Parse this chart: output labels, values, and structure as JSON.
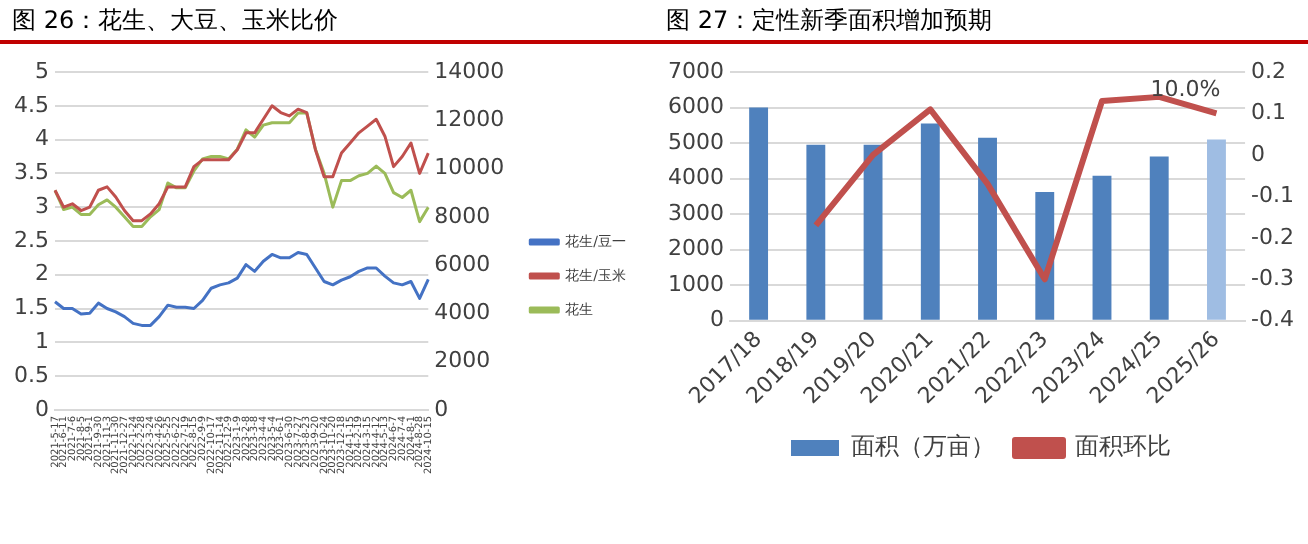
{
  "chart_data": [
    {
      "type": "line",
      "title": "图 26：花生、大豆、玉米比价",
      "categories": [
        "2021-5-17",
        "2021-6-11",
        "2021-7-6",
        "2021-8-5",
        "2021-9-1",
        "2021-9-30",
        "2021-11-3",
        "2021-11-30",
        "2021-12-27",
        "2022-1-24",
        "2022-2-28",
        "2022-3-24",
        "2022-4-26",
        "2022-5-25",
        "2022-6-22",
        "2022-7-19",
        "2022-8-15",
        "2022-9-9",
        "2022-10-17",
        "2022-11-14",
        "2022-12-9",
        "2023-1-9",
        "2023-2-8",
        "2023-3-8",
        "2023-4-4",
        "2023-5-4",
        "2023-6-1",
        "2023-6-30",
        "2023-7-27",
        "2023-8-23",
        "2023-9-20",
        "2023-10-24",
        "2023-11-20",
        "2023-12-18",
        "2024-1-15",
        "2024-2-19",
        "2024-3-15",
        "2024-4-12",
        "2024-5-13",
        "2024-6-7",
        "2024-7-4",
        "2024-8-1",
        "2024-8-28",
        "2024-10-15"
      ],
      "series": [
        {
          "name": "花生/豆一",
          "color": "#4472c4",
          "values": [
            1.6,
            1.5,
            1.5,
            1.42,
            1.43,
            1.58,
            1.5,
            1.45,
            1.38,
            1.28,
            1.25,
            1.25,
            1.38,
            1.55,
            1.52,
            1.52,
            1.5,
            1.62,
            1.8,
            1.85,
            1.88,
            1.95,
            2.15,
            2.05,
            2.2,
            2.3,
            2.25,
            2.25,
            2.33,
            2.3,
            2.1,
            1.9,
            1.85,
            1.92,
            1.97,
            2.05,
            2.1,
            2.1,
            1.98,
            1.88,
            1.85,
            1.9,
            1.65,
            1.93
          ]
        },
        {
          "name": "花生/玉米",
          "color": "#c0504d",
          "values": [
            3.25,
            3.0,
            3.05,
            2.95,
            3.0,
            3.25,
            3.3,
            3.15,
            2.95,
            2.8,
            2.8,
            2.9,
            3.05,
            3.3,
            3.3,
            3.3,
            3.6,
            3.7,
            3.7,
            3.7,
            3.7,
            3.85,
            4.1,
            4.1,
            4.3,
            4.5,
            4.4,
            4.35,
            4.45,
            4.4,
            3.85,
            3.45,
            3.45,
            3.8,
            3.95,
            4.1,
            4.2,
            4.3,
            4.05,
            3.6,
            3.75,
            3.95,
            3.5,
            3.8
          ]
        },
        {
          "name": "花生",
          "color": "#9bbb59",
          "axis": "y2",
          "values": [
            9100,
            8300,
            8400,
            8100,
            8100,
            8500,
            8700,
            8400,
            8000,
            7600,
            7600,
            8000,
            8300,
            9400,
            9200,
            9200,
            9900,
            10400,
            10500,
            10500,
            10400,
            10800,
            11600,
            11300,
            11800,
            11900,
            11900,
            11900,
            12300,
            12300,
            10800,
            9800,
            8400,
            9500,
            9500,
            9700,
            9800,
            10100,
            9800,
            9000,
            8800,
            9100,
            7800,
            8400
          ]
        }
      ],
      "ylim": [
        0,
        5
      ],
      "yticks": [
        0,
        0.5,
        1,
        1.5,
        2,
        2.5,
        3,
        3.5,
        4,
        4.5,
        5
      ],
      "y2lim": [
        0,
        14000
      ],
      "y2ticks": [
        0,
        2000,
        4000,
        6000,
        8000,
        10000,
        12000,
        14000
      ],
      "grid": "y",
      "legend": "right",
      "marker": "none",
      "line_style": "solid"
    },
    {
      "type": "bar",
      "title": "图 27：定性新季面积增加预期",
      "categories": [
        "2017/18",
        "2018/19",
        "2019/20",
        "2020/21",
        "2021/22",
        "2022/23",
        "2023/24",
        "2024/25",
        "2025/26"
      ],
      "series": [
        {
          "name": "面积（万亩）",
          "type": "bar",
          "colors": [
            "#4f81bd",
            "#4f81bd",
            "#4f81bd",
            "#4f81bd",
            "#4f81bd",
            "#4f81bd",
            "#4f81bd",
            "#4f81bd",
            "#9fbde3"
          ],
          "values": [
            6000,
            4950,
            4950,
            5550,
            5150,
            3620,
            4080,
            4620,
            5100
          ]
        },
        {
          "name": "面积环比",
          "type": "line",
          "color": "#c0504d",
          "axis": "y2",
          "values": [
            null,
            -0.17,
            0.0,
            0.11,
            -0.07,
            -0.3,
            0.13,
            0.14,
            0.1
          ],
          "value_labels": [
            null,
            null,
            null,
            null,
            null,
            null,
            null,
            null,
            "10.0%"
          ]
        }
      ],
      "ylim": [
        0,
        7000
      ],
      "yticks": [
        0,
        1000,
        2000,
        3000,
        4000,
        5000,
        6000,
        7000
      ],
      "y2lim": [
        -0.4,
        0.2
      ],
      "y2ticks": [
        -0.4,
        -0.3,
        -0.2,
        -0.1,
        0,
        0.1,
        0.2
      ],
      "grid": "y",
      "legend": "bottom",
      "marker": "none",
      "line_style": "solid"
    }
  ]
}
